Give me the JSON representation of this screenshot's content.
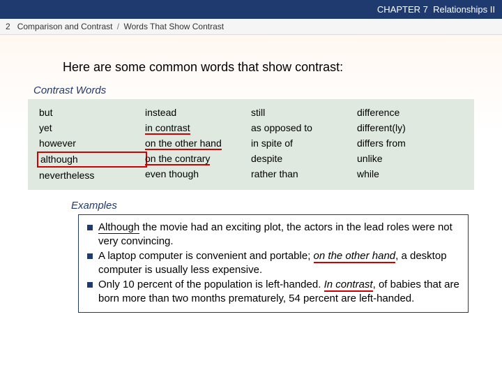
{
  "chapter_bar": {
    "label": "CHAPTER 7",
    "title": "Relationships II"
  },
  "breadcrumb": {
    "section_num": "2",
    "section_title": "Comparison and Contrast",
    "subsection": "Words That Show Contrast"
  },
  "intro": "Here are some common words that show contrast:",
  "labels": {
    "contrast_words": "Contrast Words",
    "examples": "Examples"
  },
  "columns": [
    [
      "but",
      "yet",
      "however",
      "although",
      "nevertheless"
    ],
    [
      "instead",
      "in contrast",
      "on the other hand",
      "on the contrary",
      "even though"
    ],
    [
      "still",
      "as opposed to",
      "in spite of",
      "despite",
      "rather than"
    ],
    [
      "difference",
      "different(ly)",
      "differs from",
      "unlike",
      "while"
    ]
  ],
  "highlights": {
    "col0_boxed_index": 3,
    "col1_underlined_indices": [
      1,
      2,
      3
    ]
  },
  "examples": [
    {
      "segments": [
        {
          "t": "Although",
          "ul_red": true,
          "ul_dark": true
        },
        {
          "t": " the movie had an exciting plot, the actors in the lead roles were not very convincing."
        }
      ]
    },
    {
      "segments": [
        {
          "t": "A laptop computer is convenient and portable; "
        },
        {
          "t": "on the other hand",
          "italic": true,
          "ul_red": true
        },
        {
          "t": ", a desktop computer is usually less expensive."
        }
      ]
    },
    {
      "segments": [
        {
          "t": "Only 10 percent of the population is left-handed. "
        },
        {
          "t": "In contrast",
          "italic": true,
          "ul_red": true
        },
        {
          "t": ", of babies that are born more than two months prematurely, 54 percent are left-handed."
        }
      ]
    }
  ],
  "colors": {
    "chapter_bg": "#1f3a6f",
    "words_bg": "#dfe9df",
    "red": "#d00000"
  }
}
